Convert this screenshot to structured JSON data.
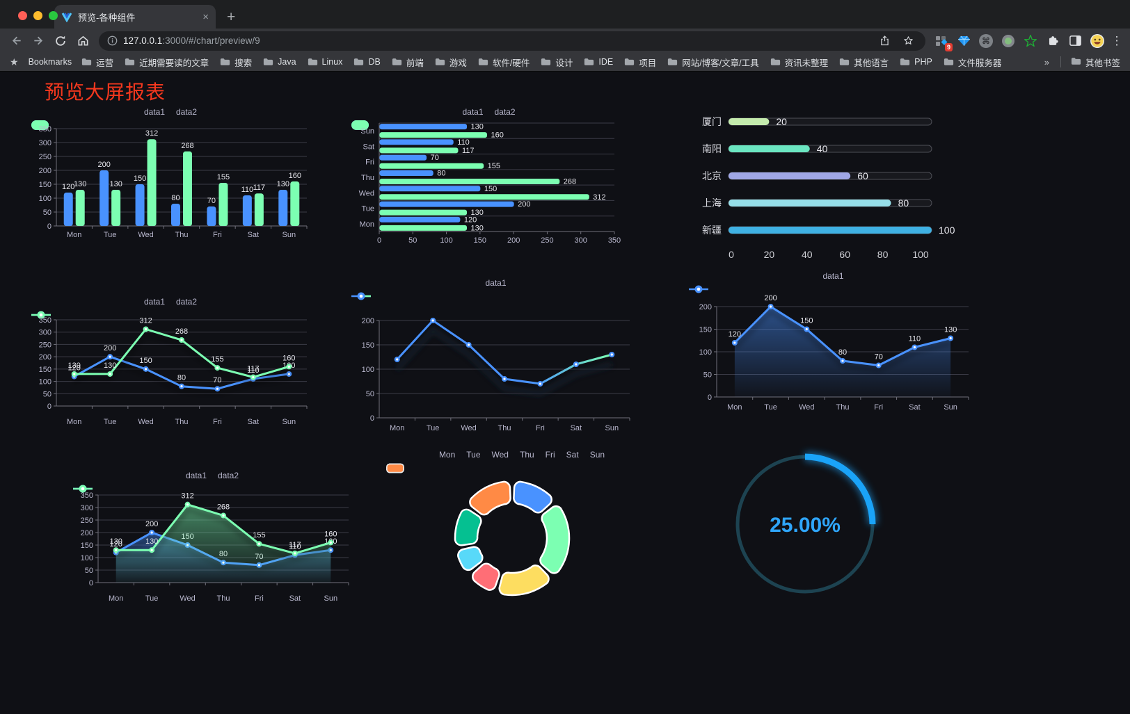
{
  "browser": {
    "tab": {
      "title": "预览-各种组件",
      "close_glyph": "×",
      "new_tab_glyph": "+"
    },
    "address": {
      "host": "127.0.0.1",
      "path": ":3000/#/chart/preview/9"
    },
    "extensions_badge": "9",
    "menu_glyph": "⋮",
    "bookmarks_bar": {
      "label": "Bookmarks",
      "folders": [
        "运营",
        "近期需要读的文章",
        "搜索",
        "Java",
        "Linux",
        "DB",
        "前端",
        "游戏",
        "软件/硬件",
        "设计",
        "IDE",
        "项目",
        "网站/博客/文章/工具",
        "资讯未整理",
        "其他语言",
        "PHP",
        "文件服务器"
      ],
      "overflow_glyph": "»",
      "other_bookmarks": "其他书签"
    }
  },
  "page": {
    "title": "预览大屏报表",
    "title_color": "#f5381e",
    "background": "#0f1015"
  },
  "chart_data": [
    {
      "type": "bar",
      "legend_position": "top",
      "grid": true,
      "categories": [
        "Mon",
        "Tue",
        "Wed",
        "Thu",
        "Fri",
        "Sat",
        "Sun"
      ],
      "series": [
        {
          "name": "data1",
          "color": "#4992ff",
          "values": [
            120,
            200,
            150,
            80,
            70,
            110,
            130
          ]
        },
        {
          "name": "data2",
          "color": "#7cffb2",
          "values": [
            130,
            130,
            312,
            268,
            155,
            117,
            160
          ]
        }
      ],
      "ylim": [
        0,
        350
      ],
      "ytick_step": 50,
      "show_labels": true
    },
    {
      "type": "bar",
      "orientation": "horizontal",
      "legend_position": "top",
      "grid": true,
      "categories": [
        "Mon",
        "Tue",
        "Wed",
        "Thu",
        "Fri",
        "Sat",
        "Sun"
      ],
      "series": [
        {
          "name": "data1",
          "color": "#4992ff",
          "values": [
            120,
            200,
            150,
            80,
            70,
            110,
            130
          ]
        },
        {
          "name": "data2",
          "color": "#7cffb2",
          "values": [
            130,
            130,
            312,
            268,
            155,
            117,
            160
          ]
        }
      ],
      "xlim": [
        0,
        350
      ],
      "xtick_step": 50,
      "show_labels": true
    },
    {
      "type": "bar",
      "variant": "capsule",
      "categories": [
        "厦门",
        "南阳",
        "北京",
        "上海",
        "新疆"
      ],
      "values": [
        20,
        40,
        60,
        80,
        100
      ],
      "colors": [
        "#c4ebad",
        "#6be6c1",
        "#a0a7e6",
        "#96dee8",
        "#3fb1e3"
      ],
      "xlim": [
        0,
        100
      ],
      "xticks": [
        0,
        20,
        40,
        60,
        80,
        100
      ],
      "show_labels": true
    },
    {
      "type": "line",
      "legend_position": "top",
      "grid": true,
      "categories": [
        "Mon",
        "Tue",
        "Wed",
        "Thu",
        "Fri",
        "Sat",
        "Sun"
      ],
      "series": [
        {
          "name": "data1",
          "color": "#4992ff",
          "values": [
            120,
            200,
            150,
            80,
            70,
            110,
            130
          ]
        },
        {
          "name": "data2",
          "color": "#7cffb2",
          "values": [
            130,
            130,
            312,
            268,
            155,
            117,
            160
          ]
        }
      ],
      "ylim": [
        0,
        350
      ],
      "ytick_step": 50,
      "show_labels": true
    },
    {
      "type": "line",
      "variant": "gradient-shadow",
      "legend_position": "top",
      "grid": true,
      "categories": [
        "Mon",
        "Tue",
        "Wed",
        "Thu",
        "Fri",
        "Sat",
        "Sun"
      ],
      "series": [
        {
          "name": "data1",
          "color": "#4992ff",
          "color_end": "#7cffb2",
          "values": [
            120,
            200,
            150,
            80,
            70,
            110,
            130
          ]
        }
      ],
      "ylim": [
        0,
        200
      ],
      "ytick_step": 50,
      "show_labels": false
    },
    {
      "type": "area",
      "legend_position": "top",
      "grid": true,
      "categories": [
        "Mon",
        "Tue",
        "Wed",
        "Thu",
        "Fri",
        "Sat",
        "Sun"
      ],
      "series": [
        {
          "name": "data1",
          "color": "#4992ff",
          "values": [
            120,
            200,
            150,
            80,
            70,
            110,
            130
          ]
        }
      ],
      "ylim": [
        0,
        200
      ],
      "ytick_step": 50,
      "show_labels": true
    },
    {
      "type": "area",
      "legend_position": "top",
      "grid": true,
      "categories": [
        "Mon",
        "Tue",
        "Wed",
        "Thu",
        "Fri",
        "Sat",
        "Sun"
      ],
      "series": [
        {
          "name": "data1",
          "color": "#4992ff",
          "values": [
            120,
            200,
            150,
            80,
            70,
            110,
            130
          ]
        },
        {
          "name": "data2",
          "color": "#7cffb2",
          "values": [
            130,
            130,
            312,
            268,
            155,
            117,
            160
          ]
        }
      ],
      "ylim": [
        0,
        350
      ],
      "ytick_step": 50,
      "show_labels": true
    },
    {
      "type": "pie",
      "variant": "donut",
      "legend_position": "top",
      "categories": [
        "Mon",
        "Tue",
        "Wed",
        "Thu",
        "Fri",
        "Sat",
        "Sun"
      ],
      "values": [
        120,
        200,
        150,
        80,
        70,
        110,
        130
      ],
      "colors": [
        "#4992ff",
        "#7cffb2",
        "#fddd60",
        "#ff6e76",
        "#58d9f9",
        "#05c091",
        "#ff8a45"
      ]
    },
    {
      "type": "gauge",
      "value": 25,
      "label": "25.00%",
      "color": "#1aa3f8",
      "track_color": "#1d4351"
    }
  ]
}
